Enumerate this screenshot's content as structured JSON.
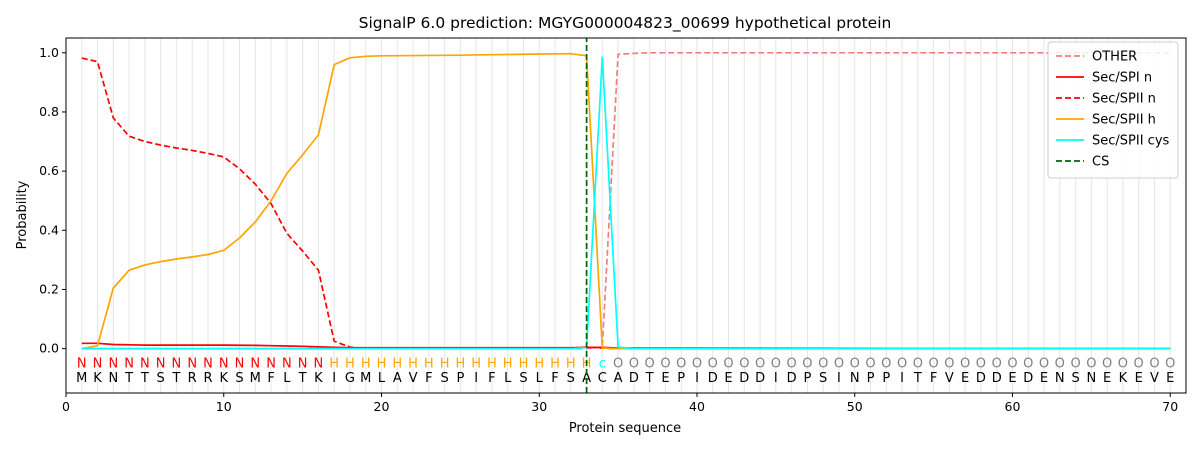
{
  "chart_data": {
    "type": "line",
    "title": "SignalP 6.0 prediction: MGYG000004823_00699 hypothetical protein",
    "xlabel": "Protein sequence",
    "ylabel": "Probability",
    "xlim": [
      0,
      71
    ],
    "ylim": [
      -0.15,
      1.05
    ],
    "x_ticks": [
      0,
      10,
      20,
      30,
      40,
      50,
      60,
      70
    ],
    "y_ticks": [
      0.0,
      0.2,
      0.4,
      0.6,
      0.8,
      1.0
    ],
    "x_tick_labels": [
      "0",
      "10",
      "20",
      "30",
      "40",
      "50",
      "60",
      "70"
    ],
    "y_tick_labels": [
      "0.0",
      "0.2",
      "0.4",
      "0.6",
      "0.8",
      "1.0"
    ],
    "grid": "vertical lines at each residue",
    "legend_position": "top-right",
    "sequence": [
      "M",
      "K",
      "N",
      "T",
      "T",
      "S",
      "T",
      "R",
      "R",
      "K",
      "S",
      "M",
      "F",
      "L",
      "T",
      "K",
      "I",
      "G",
      "M",
      "L",
      "A",
      "V",
      "F",
      "S",
      "P",
      "I",
      "F",
      "L",
      "S",
      "L",
      "F",
      "S",
      "A",
      "C",
      "A",
      "D",
      "T",
      "E",
      "P",
      "I",
      "D",
      "E",
      "D",
      "D",
      "I",
      "D",
      "P",
      "S",
      "I",
      "N",
      "P",
      "P",
      "I",
      "T",
      "F",
      "V",
      "E",
      "D",
      "D",
      "E",
      "D",
      "E",
      "N",
      "S",
      "N",
      "E",
      "K",
      "E",
      "V",
      "E"
    ],
    "annotation": [
      "N",
      "N",
      "N",
      "N",
      "N",
      "N",
      "N",
      "N",
      "N",
      "N",
      "N",
      "N",
      "N",
      "N",
      "N",
      "N",
      "H",
      "H",
      "H",
      "H",
      "H",
      "H",
      "H",
      "H",
      "H",
      "H",
      "H",
      "H",
      "H",
      "H",
      "H",
      "H",
      "H",
      "c",
      "O",
      "O",
      "O",
      "O",
      "O",
      "O",
      "O",
      "O",
      "O",
      "O",
      "O",
      "O",
      "O",
      "O",
      "O",
      "O",
      "O",
      "O",
      "O",
      "O",
      "O",
      "O",
      "O",
      "O",
      "O",
      "O",
      "O",
      "O",
      "O",
      "O",
      "O",
      "O",
      "O",
      "O",
      "O",
      "O"
    ],
    "annotation_colors": {
      "N": "#ff0000",
      "H": "#ffa500",
      "c": "#00ffff",
      "O": "#808080"
    },
    "cleavage_site": 33,
    "series": [
      {
        "name": "OTHER",
        "color": "#f08080",
        "dash": "dashed",
        "x": [
          1,
          2,
          3,
          33,
          34,
          35,
          36,
          37,
          70
        ],
        "values": [
          0.0,
          0.0,
          0.0,
          0.0,
          0.005,
          0.995,
          0.998,
          1.0,
          1.0
        ]
      },
      {
        "name": "Sec/SPI n",
        "color": "#ff0000",
        "dash": "solid",
        "x": [
          1,
          2,
          3,
          4,
          5,
          8,
          10,
          12,
          13,
          14,
          15,
          16,
          17,
          18,
          32,
          33,
          34,
          35,
          70
        ],
        "values": [
          0.018,
          0.018,
          0.014,
          0.013,
          0.012,
          0.012,
          0.012,
          0.011,
          0.01,
          0.009,
          0.008,
          0.006,
          0.004,
          0.003,
          0.003,
          0.004,
          0.004,
          0.002,
          0.0
        ]
      },
      {
        "name": "Sec/SPII n",
        "color": "#ff0000",
        "dash": "dashed",
        "x": [
          1,
          2,
          3,
          4,
          5,
          6,
          7,
          8,
          9,
          10,
          11,
          12,
          13,
          14,
          15,
          16,
          17,
          18,
          19,
          32,
          33,
          34,
          35,
          70
        ],
        "values": [
          0.982,
          0.97,
          0.78,
          0.718,
          0.7,
          0.688,
          0.678,
          0.67,
          0.66,
          0.648,
          0.608,
          0.556,
          0.49,
          0.39,
          0.33,
          0.265,
          0.025,
          0.005,
          0.0,
          0.0,
          0.005,
          0.002,
          0.0,
          0.0
        ]
      },
      {
        "name": "Sec/SPII h",
        "color": "#ffa500",
        "dash": "solid",
        "x": [
          1,
          2,
          3,
          4,
          5,
          6,
          7,
          8,
          9,
          10,
          11,
          12,
          13,
          14,
          15,
          16,
          17,
          18,
          19,
          20,
          25,
          30,
          32,
          33,
          34,
          35,
          70
        ],
        "values": [
          0.0,
          0.01,
          0.205,
          0.265,
          0.283,
          0.294,
          0.303,
          0.31,
          0.318,
          0.332,
          0.374,
          0.428,
          0.5,
          0.592,
          0.655,
          0.722,
          0.96,
          0.983,
          0.988,
          0.99,
          0.992,
          0.996,
          0.997,
          0.99,
          0.002,
          0.0,
          0.0
        ]
      },
      {
        "name": "Sec/SPII cys",
        "color": "#00ffff",
        "dash": "solid",
        "x": [
          1,
          32,
          33,
          34,
          35,
          36,
          70
        ],
        "values": [
          0.0,
          0.0,
          0.003,
          0.985,
          0.005,
          0.0,
          0.0
        ]
      },
      {
        "name": "CS",
        "color": "#006400",
        "dash": "dashed",
        "x": [
          33,
          33
        ],
        "values": [
          -0.15,
          1.05
        ]
      }
    ]
  }
}
